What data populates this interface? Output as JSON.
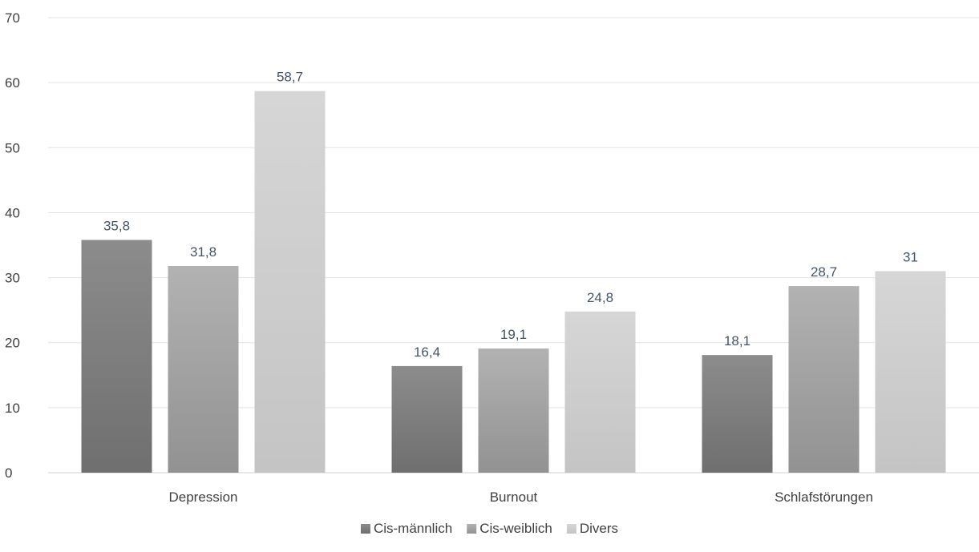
{
  "chart_data": {
    "type": "bar",
    "categories": [
      "Depression",
      "Burnout",
      "Schlafstörungen"
    ],
    "series": [
      {
        "name": "Cis-männlich",
        "values": [
          35.8,
          16.4,
          18.1
        ],
        "labels": [
          "35,8",
          "16,4",
          "18,1"
        ],
        "color_top": "#8c8c8c",
        "color_bottom": "#6f6f6f"
      },
      {
        "name": "Cis-weiblich",
        "values": [
          31.8,
          19.1,
          28.7
        ],
        "labels": [
          "31,8",
          "19,1",
          "28,7"
        ],
        "color_top": "#b2b2b2",
        "color_bottom": "#929292"
      },
      {
        "name": "Divers",
        "values": [
          58.7,
          24.8,
          31
        ],
        "labels": [
          "58,7",
          "24,8",
          "31"
        ],
        "color_top": "#d6d6d6",
        "color_bottom": "#c4c4c4"
      }
    ],
    "ylim": [
      0,
      70
    ],
    "yticks": [
      0,
      10,
      20,
      30,
      40,
      50,
      60,
      70
    ],
    "title": "",
    "xlabel": "",
    "ylabel": "",
    "grid": true,
    "legend_position": "bottom"
  }
}
